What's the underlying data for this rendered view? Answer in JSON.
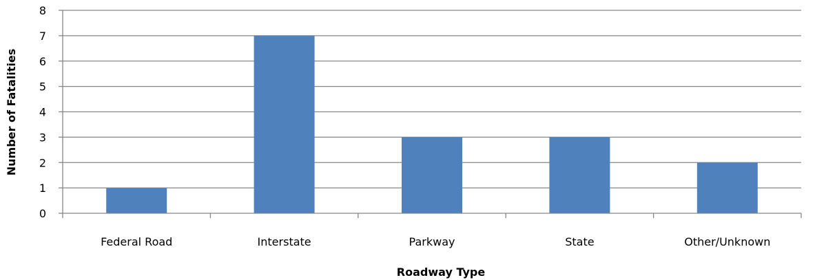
{
  "chart_data": {
    "type": "bar",
    "title": "",
    "xlabel": "Roadway Type",
    "ylabel": "Number of Fatalities",
    "categories": [
      "Federal Road",
      "Interstate",
      "Parkway",
      "State",
      "Other/Unknown"
    ],
    "values": [
      1,
      7,
      3,
      3,
      2
    ],
    "ylim": [
      0,
      8
    ],
    "yticks": [
      "0",
      "1",
      "2",
      "3",
      "4",
      "5",
      "6",
      "7",
      "8"
    ],
    "grid": true,
    "legend": "none",
    "colors": {
      "bar": "#4F81BD",
      "grid": "#868686",
      "axis": "#868686"
    }
  }
}
